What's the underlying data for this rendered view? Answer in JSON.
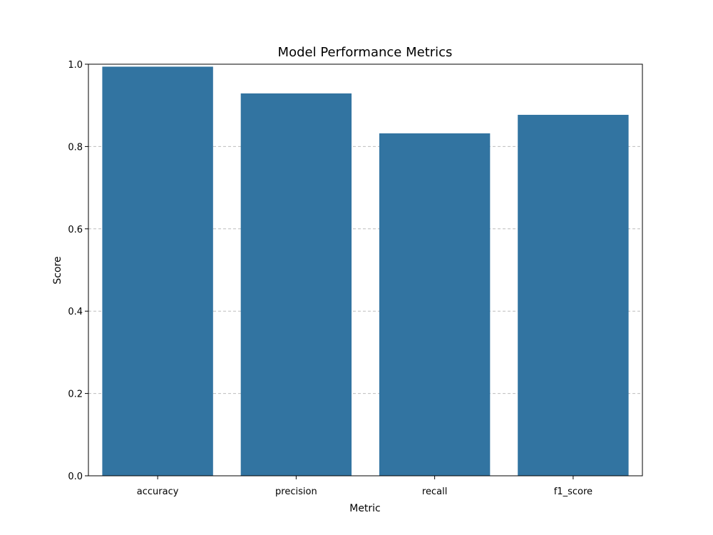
{
  "chart_data": {
    "type": "bar",
    "title": "Model Performance Metrics",
    "xlabel": "Metric",
    "ylabel": "Score",
    "categories": [
      "accuracy",
      "precision",
      "recall",
      "f1_score"
    ],
    "values": [
      0.994,
      0.929,
      0.832,
      0.877
    ],
    "ylim": [
      0,
      1.0
    ],
    "yticks": [
      "0.0",
      "0.2",
      "0.4",
      "0.6",
      "0.8",
      "1.0"
    ],
    "grid": "y-dashed",
    "bar_color": "#3274a1",
    "grid_color": "#bdbdbd"
  }
}
